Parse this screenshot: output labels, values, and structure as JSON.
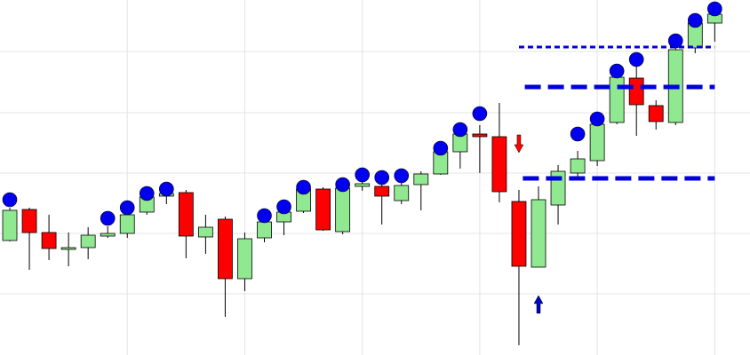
{
  "chart_data": {
    "type": "candlestick",
    "xlim": [
      -0.5,
      37.8
    ],
    "xticks": [
      6,
      12,
      18,
      24,
      30,
      36
    ],
    "ylim": [
      0,
      400
    ],
    "yticks": [
      69,
      137,
      205,
      273,
      342
    ],
    "grid": true,
    "up_color": "#90e890",
    "down_color": "#ff0000",
    "dot_color": "#0000ee",
    "open": [
      129,
      164,
      138,
      119,
      121,
      134,
      137,
      161,
      179,
      183,
      133,
      153,
      86,
      132,
      150,
      162,
      187,
      139,
      190,
      190,
      174,
      192,
      204,
      229,
      249,
      246,
      173,
      99,
      169,
      205,
      219,
      262,
      312,
      281,
      262,
      346,
      374
    ],
    "high": [
      166,
      166,
      158,
      138,
      144,
      145,
      170,
      186,
      192,
      186,
      158,
      156,
      138,
      156,
      171,
      193,
      189,
      194,
      198,
      193,
      195,
      207,
      235,
      257,
      259,
      284,
      186,
      190,
      214,
      230,
      270,
      320,
      325,
      287,
      350,
      378,
      388
    ],
    "low": [
      128,
      96,
      107,
      100,
      108,
      132,
      132,
      158,
      170,
      109,
      114,
      43,
      72,
      127,
      135,
      160,
      140,
      136,
      185,
      147,
      170,
      163,
      203,
      210,
      205,
      172,
      11,
      99,
      147,
      197,
      213,
      260,
      247,
      254,
      259,
      340,
      353
    ],
    "close": [
      163,
      138,
      120,
      121,
      135,
      137,
      158,
      178,
      182,
      134,
      144,
      86,
      131,
      150,
      161,
      187,
      141,
      188,
      193,
      179,
      191,
      204,
      229,
      249,
      246,
      184,
      100,
      175,
      207,
      221,
      260,
      313,
      282,
      263,
      344,
      374,
      384
    ],
    "dots": [
      175,
      null,
      null,
      null,
      null,
      154,
      166,
      182,
      187,
      null,
      null,
      null,
      null,
      157,
      167,
      189,
      null,
      192,
      203,
      200,
      202,
      null,
      233,
      254,
      272,
      null,
      null,
      null,
      null,
      249,
      266,
      320,
      333,
      null,
      354,
      377,
      390
    ],
    "levels": [
      {
        "value": 347,
        "start": 26,
        "end": 36,
        "style": "dotted"
      },
      {
        "value": 302,
        "start": 26.3,
        "end": 36,
        "style": "dashed"
      },
      {
        "value": 199,
        "start": 26.2,
        "end": 36,
        "style": "dashed"
      }
    ],
    "arrows": [
      {
        "index": 26,
        "value": 228,
        "direction": "down",
        "color": "#ff0000"
      },
      {
        "index": 27,
        "value": 67,
        "direction": "up",
        "color": "#0000cc"
      }
    ]
  }
}
